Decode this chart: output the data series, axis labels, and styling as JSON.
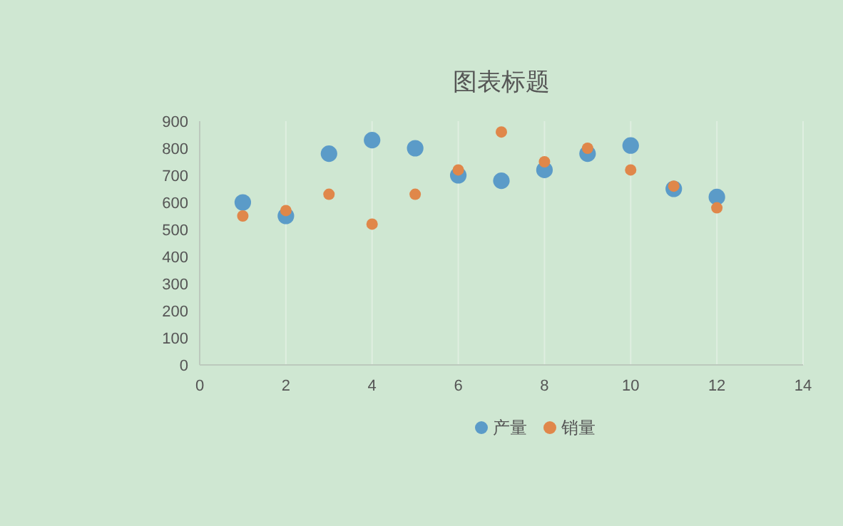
{
  "chart_data": {
    "type": "scatter",
    "title": "图表标题",
    "x": [
      1,
      2,
      3,
      4,
      5,
      6,
      7,
      8,
      9,
      10,
      11,
      12
    ],
    "series": [
      {
        "name": "产量",
        "color": "#5b9bc8",
        "values": [
          600,
          550,
          780,
          830,
          800,
          700,
          680,
          720,
          780,
          810,
          650,
          620
        ]
      },
      {
        "name": "销量",
        "color": "#e0874a",
        "values": [
          550,
          570,
          630,
          520,
          630,
          720,
          860,
          750,
          800,
          720,
          660,
          580
        ]
      }
    ],
    "xlim": [
      0,
      14
    ],
    "xticks": [
      0,
      2,
      4,
      6,
      8,
      10,
      12,
      14
    ],
    "ylim": [
      0,
      900
    ],
    "yticks": [
      0,
      100,
      200,
      300,
      400,
      500,
      600,
      700,
      800,
      900
    ],
    "grid": "x",
    "legend": "bottom",
    "marker": "circle"
  }
}
